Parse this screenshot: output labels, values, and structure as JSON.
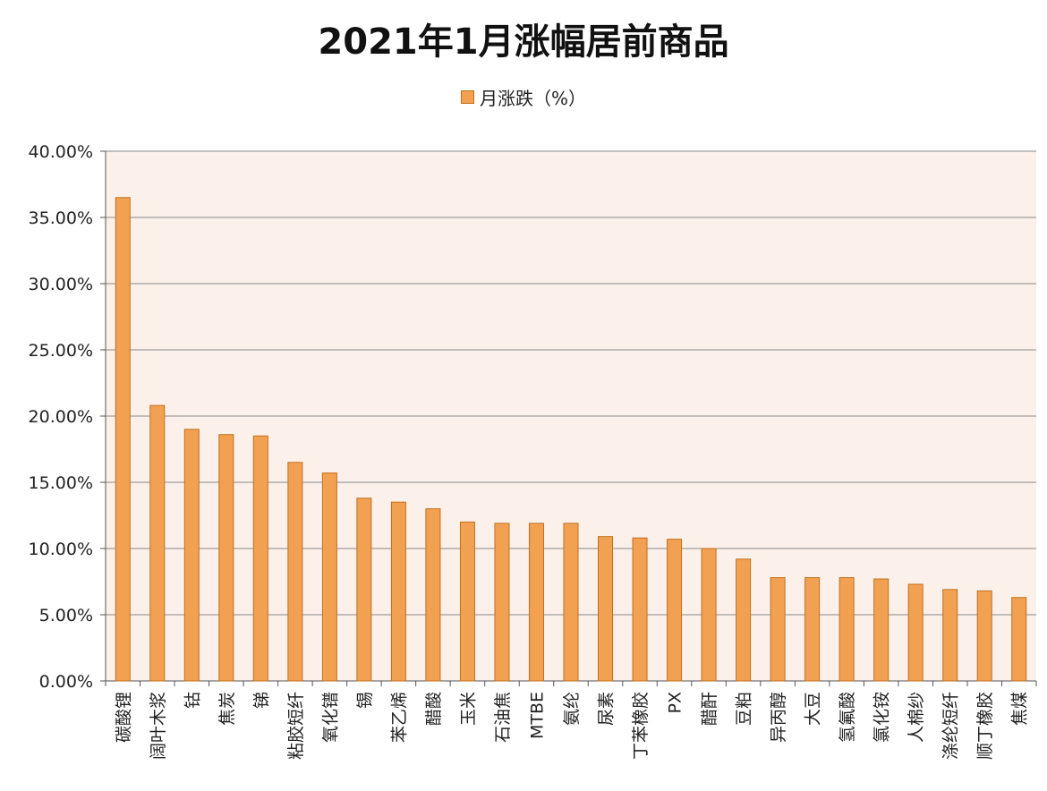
{
  "chart_data": {
    "type": "bar",
    "title": "2021年1月涨幅居前商品",
    "legend": [
      "月涨跌（%）"
    ],
    "legend_position": "top",
    "xlabel": "",
    "ylabel": "",
    "ylim": [
      0,
      40
    ],
    "yticks": [
      "0.00%",
      "5.00%",
      "10.00%",
      "15.00%",
      "20.00%",
      "25.00%",
      "30.00%",
      "35.00%",
      "40.00%"
    ],
    "grid": true,
    "categories": [
      "碳酸锂",
      "阔叶木浆",
      "钴",
      "焦炭",
      "锑",
      "粘胶短纤",
      "氧化镨",
      "锡",
      "苯乙烯",
      "醋酸",
      "玉米",
      "石油焦",
      "MTBE",
      "氨纶",
      "尿素",
      "丁苯橡胶",
      "PX",
      "醋酐",
      "豆粕",
      "异丙醇",
      "大豆",
      "氢氟酸",
      "氯化铵",
      "人棉纱",
      "涤纶短纤",
      "顺丁橡胶",
      "焦煤"
    ],
    "series": [
      {
        "name": "月涨跌（%）",
        "values": [
          36.5,
          20.8,
          19.0,
          18.6,
          18.5,
          16.5,
          15.7,
          13.8,
          13.5,
          13.0,
          12.0,
          11.9,
          11.9,
          11.9,
          10.9,
          10.8,
          10.7,
          10.0,
          9.2,
          7.8,
          7.8,
          7.8,
          7.7,
          7.3,
          6.9,
          6.8,
          6.3
        ],
        "color": "#f2a152"
      }
    ],
    "colors": {
      "bar_fill": "#f2a152",
      "bar_stroke": "#c06f1c",
      "plot_background": "#fbf0ea",
      "grid": "#8a8a8a"
    }
  }
}
